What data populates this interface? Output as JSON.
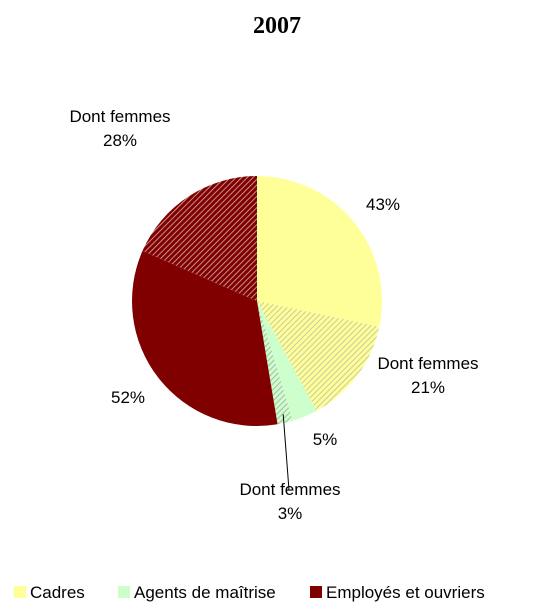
{
  "chart_data": {
    "type": "pie",
    "title": "2007",
    "slices": [
      {
        "category": "Cadres",
        "value": 43,
        "text": "43%",
        "pattern": false
      },
      {
        "category": "Cadres",
        "value": 21,
        "text": "Dont femmes|21%",
        "pattern": true
      },
      {
        "category": "Agents de maîtrise",
        "value": 5,
        "text": "5%",
        "pattern": false
      },
      {
        "category": "Agents de maîtrise",
        "value": 3,
        "text": "Dont femmes|3%",
        "pattern": true
      },
      {
        "category": "Employés et ouvriers",
        "value": 52,
        "text": "52%",
        "pattern": false
      },
      {
        "category": "Employés et ouvriers",
        "value": 28,
        "text": "Dont femmes|28%",
        "pattern": true
      }
    ],
    "legend": {
      "position": "bottom",
      "items": [
        {
          "label": "Cadres",
          "color": "#ffff99"
        },
        {
          "label": "Agents de maîtrise",
          "color": "#ccffcc"
        },
        {
          "label": "Employés et ouvriers",
          "color": "#800000"
        }
      ]
    },
    "colors": {
      "Cadres": "#ffff99",
      "Agents de maîtrise": "#ccffcc",
      "Employés et ouvriers": "#800000"
    }
  }
}
